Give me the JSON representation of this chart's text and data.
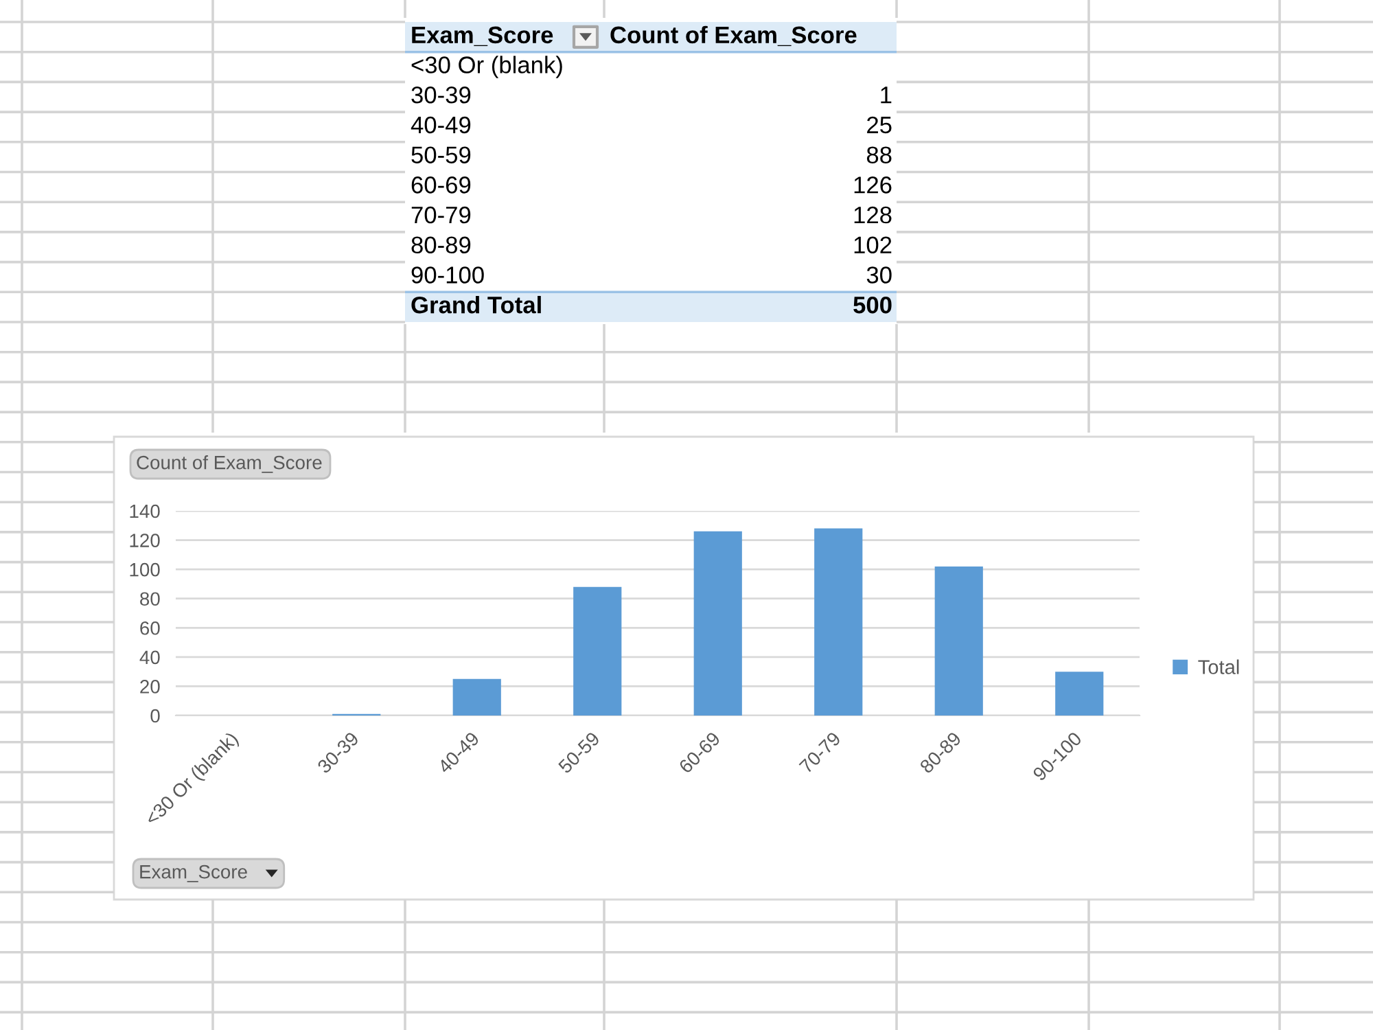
{
  "chart_data": [
    {
      "type": "other",
      "xlabel": "Exam_Score",
      "ylabel": "Count of Exam_Score",
      "categories": [
        "<30 Or (blank)",
        "30-39",
        "40-49",
        "50-59",
        "60-69",
        "70-79",
        "80-89",
        "90-100"
      ],
      "values": [
        null,
        1,
        25,
        88,
        126,
        128,
        102,
        30
      ],
      "data_labels": true,
      "annotations": [
        "Grand Total",
        "500"
      ]
    },
    {
      "type": "bar",
      "title": "Count of Exam_Score",
      "xlabel": "Exam_Score",
      "categories": [
        "<30 Or (blank)",
        "30-39",
        "40-49",
        "50-59",
        "60-69",
        "70-79",
        "80-89",
        "90-100"
      ],
      "series": [
        {
          "name": "Total",
          "color": "#5b9bd5",
          "values": [
            null,
            1,
            25,
            88,
            126,
            128,
            102,
            30
          ]
        }
      ],
      "ylim": [
        0,
        140
      ],
      "yticks": [
        0,
        20,
        40,
        60,
        80,
        100,
        120,
        140
      ],
      "grid": "y",
      "legend": "right"
    }
  ]
}
